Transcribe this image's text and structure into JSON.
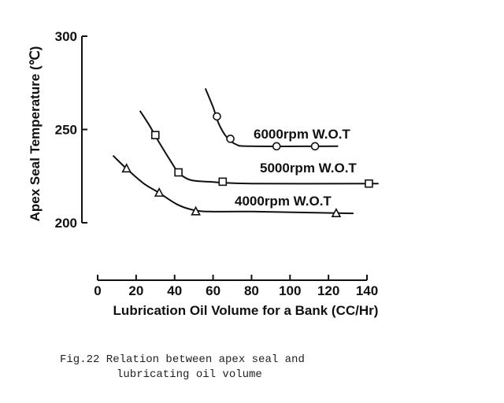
{
  "chart_data": {
    "type": "line",
    "ylabel": "Apex Seal Temperature (℃)",
    "xlabel": "Lubrication Oil Volume for a Bank (CC/Hr)",
    "xlim": [
      0,
      140
    ],
    "ylim": [
      200,
      300
    ],
    "xticks": [
      "0",
      "20",
      "40",
      "60",
      "80",
      "100",
      "120",
      "140"
    ],
    "yticks": [
      "200",
      "250",
      "300"
    ],
    "grid": false,
    "series": [
      {
        "name": "6000rpm W.O.T",
        "marker": "circle",
        "points": [
          [
            62,
            257
          ],
          [
            69,
            245
          ],
          [
            93,
            241
          ],
          [
            113,
            241
          ]
        ],
        "curve": [
          [
            56,
            272
          ],
          [
            60,
            262
          ],
          [
            63,
            253
          ],
          [
            67,
            246
          ],
          [
            72,
            242
          ],
          [
            80,
            241
          ],
          [
            125,
            241
          ]
        ]
      },
      {
        "name": "5000rpm W.O.T",
        "marker": "square",
        "points": [
          [
            30,
            247
          ],
          [
            42,
            227
          ],
          [
            65,
            222
          ],
          [
            141,
            221
          ]
        ],
        "curve": [
          [
            22,
            260
          ],
          [
            27,
            252
          ],
          [
            32,
            243
          ],
          [
            38,
            233
          ],
          [
            42,
            227
          ],
          [
            48,
            223
          ],
          [
            58,
            222
          ],
          [
            80,
            221
          ],
          [
            146,
            221
          ]
        ]
      },
      {
        "name": "4000rpm W.O.T",
        "marker": "triangle",
        "points": [
          [
            15,
            229
          ],
          [
            32,
            216
          ],
          [
            51,
            206
          ],
          [
            124,
            205
          ]
        ],
        "curve": [
          [
            8,
            236
          ],
          [
            15,
            229
          ],
          [
            24,
            221
          ],
          [
            32,
            216
          ],
          [
            41,
            210
          ],
          [
            49,
            207
          ],
          [
            58,
            206
          ],
          [
            80,
            206
          ],
          [
            133,
            205
          ]
        ]
      }
    ]
  },
  "caption": {
    "line1": "Fig.22 Relation between apex seal and",
    "line2": "lubricating oil volume"
  }
}
